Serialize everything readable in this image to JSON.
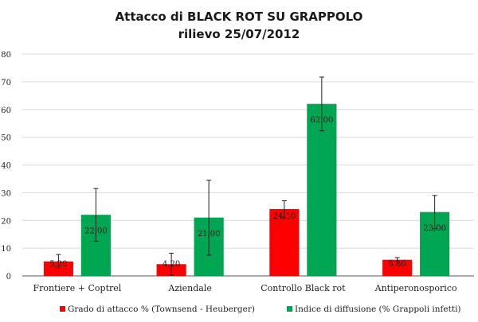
{
  "chart_data": {
    "type": "bar",
    "title_lines": [
      "Attacco di BLACK ROT SU GRAPPOLO",
      "rilievo 25/07/2012"
    ],
    "categories": [
      "Frontiere + Coptrel",
      "Aziendale",
      "Controllo Black rot",
      "Antiperonosporico"
    ],
    "ylim": [
      0,
      80
    ],
    "yticks": [
      0,
      10,
      20,
      30,
      40,
      50,
      60,
      70,
      80
    ],
    "grid": true,
    "legend_position": "bottom",
    "series": [
      {
        "name": "Grado di attacco % (Townsend - Heuberger)",
        "color": "#ff0000",
        "values": [
          5.2,
          4.2,
          24.1,
          5.8
        ],
        "labels": [
          "5,20",
          "4,20",
          "24,10",
          "5,80"
        ],
        "error": [
          2.5,
          4.0,
          3.0,
          0.8
        ]
      },
      {
        "name": "Indice di diffusione (% Grappoli infetti)",
        "color": "#00a651",
        "values": [
          22.0,
          21.0,
          62.0,
          23.0
        ],
        "labels": [
          "22,00",
          "21,00",
          "62,00",
          "23,00"
        ],
        "error": [
          9.5,
          13.5,
          9.7,
          6.0
        ]
      }
    ]
  }
}
